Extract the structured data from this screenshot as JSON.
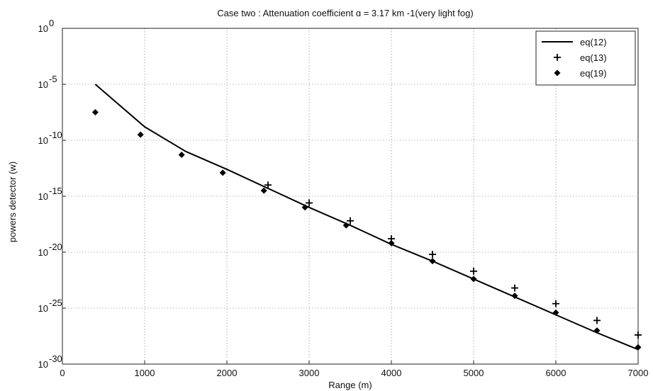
{
  "chart_data": {
    "type": "line",
    "title": "Case two : Attenuation coefficient ɑ = 3.17 km -1(very light fog)",
    "xlabel": "Range (m)",
    "ylabel": "powers detector (w)",
    "xlim": [
      0,
      7000
    ],
    "ylim_exponent": [
      -30,
      0
    ],
    "yscale": "log",
    "x_ticks": [
      0,
      1000,
      2000,
      3000,
      4000,
      5000,
      6000,
      7000
    ],
    "x_tick_labels": [
      "0",
      "1000",
      "2000",
      "3000",
      "4000",
      "5000",
      "6000",
      "7000"
    ],
    "y_tick_exponents": [
      0,
      -5,
      -10,
      -15,
      -20,
      -25,
      -30
    ],
    "y_tick_labels": [
      {
        "base": "10",
        "exp": "0"
      },
      {
        "base": "10",
        "exp": "-5"
      },
      {
        "base": "10",
        "exp": "-10"
      },
      {
        "base": "10",
        "exp": "-15"
      },
      {
        "base": "10",
        "exp": "-20"
      },
      {
        "base": "10",
        "exp": "-25"
      },
      {
        "base": "10",
        "exp": "-30"
      }
    ],
    "grid": true,
    "legend_position": "top-right",
    "series": [
      {
        "name": "eq(12)",
        "style": "line",
        "color": "#000000",
        "x": [
          400,
          1000,
          1500,
          2000,
          2500,
          3000,
          3500,
          4000,
          4500,
          5000,
          5500,
          6000,
          6500,
          7000
        ],
        "y_log10": [
          -5.0,
          -8.8,
          -11.0,
          -12.6,
          -14.3,
          -16.0,
          -17.6,
          -19.3,
          -20.8,
          -22.4,
          -24.0,
          -25.6,
          -27.2,
          -28.7
        ]
      },
      {
        "name": "eq(13)",
        "style": "plus",
        "color": "#000000",
        "x": [
          2500,
          3000,
          3500,
          4000,
          4500,
          5000,
          5500,
          6000,
          6500,
          7000
        ],
        "y_log10": [
          -14.0,
          -15.6,
          -17.2,
          -18.8,
          -20.2,
          -21.7,
          -23.2,
          -24.6,
          -26.1,
          -27.4
        ]
      },
      {
        "name": "eq(19)",
        "style": "diamond",
        "color": "#000000",
        "x": [
          400,
          950,
          1450,
          1950,
          2450,
          2950,
          3450,
          4000,
          4500,
          5000,
          5500,
          6000,
          6500,
          7000
        ],
        "y_log10": [
          -7.5,
          -9.5,
          -11.3,
          -12.9,
          -14.5,
          -16.0,
          -17.6,
          -19.2,
          -20.8,
          -22.4,
          -23.9,
          -25.4,
          -27.0,
          -28.5
        ]
      }
    ]
  }
}
